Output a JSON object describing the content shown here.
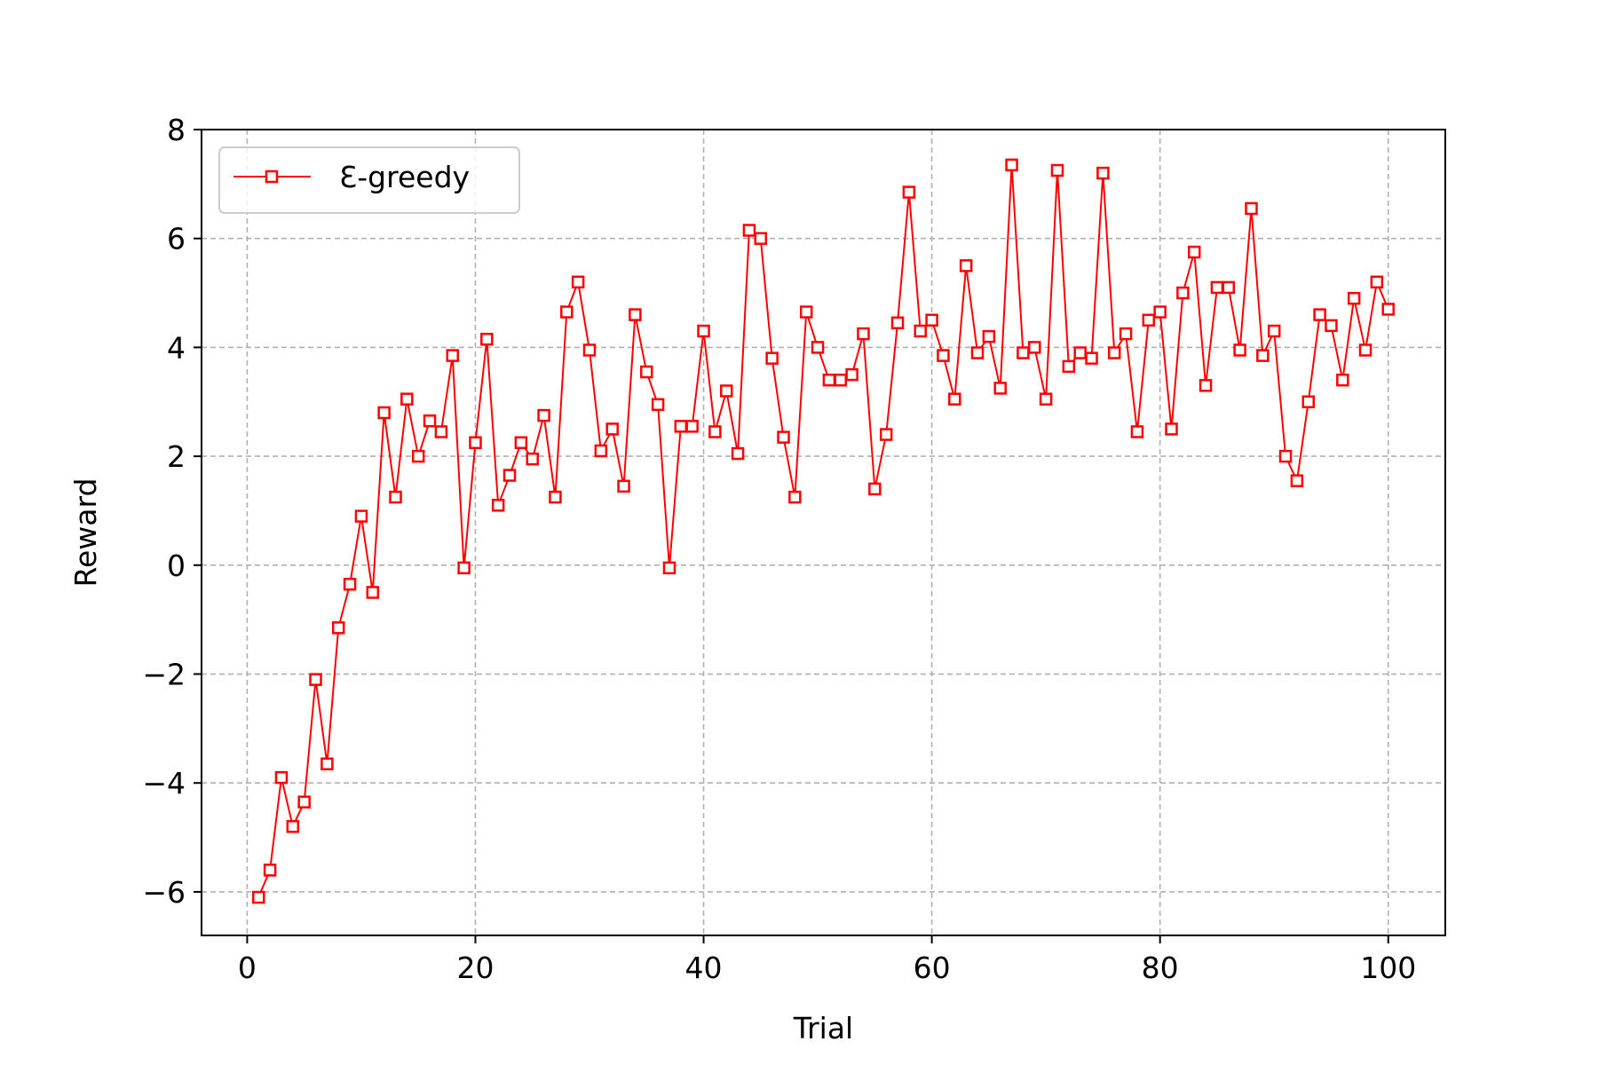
{
  "chart_data": {
    "type": "line",
    "title": "",
    "xlabel": "Trial",
    "ylabel": "Reward",
    "xlim": [
      -4,
      105
    ],
    "ylim": [
      -6.8,
      8
    ],
    "xticks": [
      0,
      20,
      40,
      60,
      80,
      100
    ],
    "yticks": [
      -6,
      -4,
      -2,
      0,
      2,
      4,
      6,
      8
    ],
    "xtick_labels": [
      "0",
      "20",
      "40",
      "60",
      "80",
      "100"
    ],
    "ytick_labels": [
      "−6",
      "−4",
      "−2",
      "0",
      "2",
      "4",
      "6",
      "8"
    ],
    "grid": true,
    "legend_position": "top-left",
    "series": [
      {
        "name": "Ɛ-greedy",
        "color": "#ff0000",
        "marker": "square",
        "x": [
          1,
          2,
          3,
          4,
          5,
          6,
          7,
          8,
          9,
          10,
          11,
          12,
          13,
          14,
          15,
          16,
          17,
          18,
          19,
          20,
          21,
          22,
          23,
          24,
          25,
          26,
          27,
          28,
          29,
          30,
          31,
          32,
          33,
          34,
          35,
          36,
          37,
          38,
          39,
          40,
          41,
          42,
          43,
          44,
          45,
          46,
          47,
          48,
          49,
          50,
          51,
          52,
          53,
          54,
          55,
          56,
          57,
          58,
          59,
          60,
          61,
          62,
          63,
          64,
          65,
          66,
          67,
          68,
          69,
          70,
          71,
          72,
          73,
          74,
          75,
          76,
          77,
          78,
          79,
          80,
          81,
          82,
          83,
          84,
          85,
          86,
          87,
          88,
          89,
          90,
          91,
          92,
          93,
          94,
          95,
          96,
          97,
          98,
          99,
          100
        ],
        "y": [
          -6.1,
          -5.6,
          -3.9,
          -4.8,
          -4.35,
          -2.1,
          -3.65,
          -1.15,
          -0.35,
          0.9,
          -0.5,
          2.8,
          1.25,
          3.05,
          2.0,
          2.65,
          2.45,
          3.85,
          -0.05,
          2.25,
          4.15,
          1.1,
          1.65,
          2.25,
          1.95,
          2.75,
          1.25,
          4.65,
          5.2,
          3.95,
          2.1,
          2.5,
          1.45,
          4.6,
          3.55,
          2.95,
          -0.05,
          2.55,
          2.55,
          4.3,
          2.45,
          3.2,
          2.05,
          6.15,
          6.0,
          3.8,
          2.35,
          1.25,
          4.65,
          4.0,
          3.4,
          3.4,
          3.5,
          4.25,
          1.4,
          2.4,
          4.45,
          6.85,
          4.3,
          4.5,
          3.85,
          3.05,
          5.5,
          3.9,
          4.2,
          3.25,
          7.35,
          3.9,
          4.0,
          3.05,
          7.25,
          3.65,
          3.9,
          3.8,
          7.2,
          3.9,
          4.25,
          2.45,
          4.5,
          4.65,
          2.5,
          5.0,
          5.75,
          3.3,
          5.1,
          5.1,
          3.95,
          6.55,
          3.85,
          4.3,
          2.0,
          1.55,
          3.0,
          4.6,
          4.4,
          3.4,
          4.9,
          3.95,
          5.2,
          4.7
        ]
      }
    ]
  }
}
